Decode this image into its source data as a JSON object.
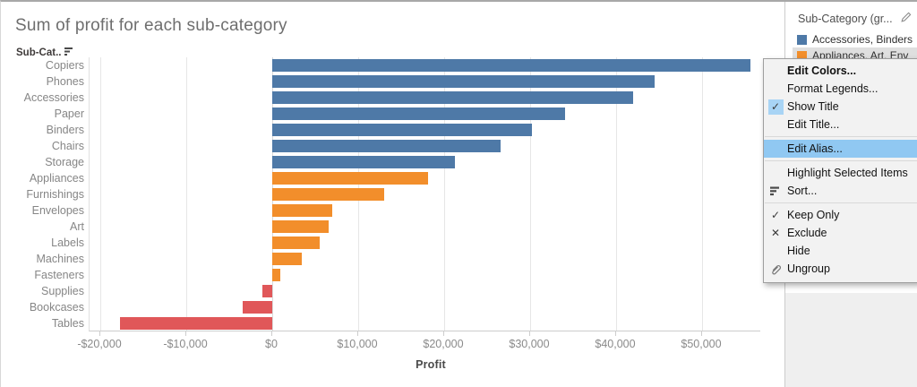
{
  "colors": {
    "blue_group": "#4e79a7",
    "orange_group": "#f28e2b",
    "red_group": "#e05759",
    "menu_highlight": "#90c8f2",
    "menu_check_bg": "#a8d4f5",
    "legend_selected_bg": "#dfdfdf"
  },
  "chart_data": {
    "type": "bar",
    "orientation": "horizontal",
    "title": "Sum of profit for each sub-category",
    "xlabel": "Profit",
    "ylabel": "Sub-Cat..",
    "grid": true,
    "xlim": [
      -21250,
      56875
    ],
    "xticks": {
      "values": [
        -20000,
        -10000,
        0,
        10000,
        20000,
        30000,
        40000,
        50000
      ],
      "labels": [
        "-$20,000",
        "-$10,000",
        "$0",
        "$10,000",
        "$20,000",
        "$30,000",
        "$40,000",
        "$50,000"
      ]
    },
    "categories": [
      "Copiers",
      "Phones",
      "Accessories",
      "Paper",
      "Binders",
      "Chairs",
      "Storage",
      "Appliances",
      "Furnishings",
      "Envelopes",
      "Art",
      "Labels",
      "Machines",
      "Fasteners",
      "Supplies",
      "Bookcases",
      "Tables"
    ],
    "values": [
      55618,
      44516,
      41937,
      34054,
      30222,
      26590,
      21279,
      18138,
      13059,
      6964,
      6528,
      5546,
      3385,
      950,
      -1189,
      -3473,
      -17725
    ],
    "bar_groups": [
      "blue_group",
      "blue_group",
      "blue_group",
      "blue_group",
      "blue_group",
      "blue_group",
      "blue_group",
      "orange_group",
      "orange_group",
      "orange_group",
      "orange_group",
      "orange_group",
      "orange_group",
      "orange_group",
      "red_group",
      "red_group",
      "red_group"
    ]
  },
  "row_header": {
    "label": "Sub-Cat..",
    "icon": "sort-descending-icon"
  },
  "legend": {
    "title": "Sub-Category (gr...",
    "edit_icon": "pencil-icon",
    "items": [
      {
        "label": "Accessories, Binders",
        "color_key": "blue_group",
        "selected": false
      },
      {
        "label": "Appliances, Art, Env",
        "color_key": "orange_group",
        "selected": true
      }
    ]
  },
  "context_menu": {
    "items": [
      {
        "label": "Edit Colors...",
        "bold": true
      },
      {
        "label": "Format Legends..."
      },
      {
        "label": "Show Title",
        "icon": "checkmark-icon",
        "checked": true
      },
      {
        "label": "Edit Title..."
      },
      {
        "separator": true
      },
      {
        "label": "Edit Alias...",
        "highlighted": true
      },
      {
        "separator": true
      },
      {
        "label": "Highlight Selected Items"
      },
      {
        "label": "Sort...",
        "icon": "sort-icon"
      },
      {
        "separator": true
      },
      {
        "label": "Keep Only",
        "icon": "checkmark-icon"
      },
      {
        "label": "Exclude",
        "icon": "cross-icon"
      },
      {
        "label": "Hide"
      },
      {
        "label": "Ungroup",
        "icon": "paperclip-icon"
      }
    ]
  }
}
